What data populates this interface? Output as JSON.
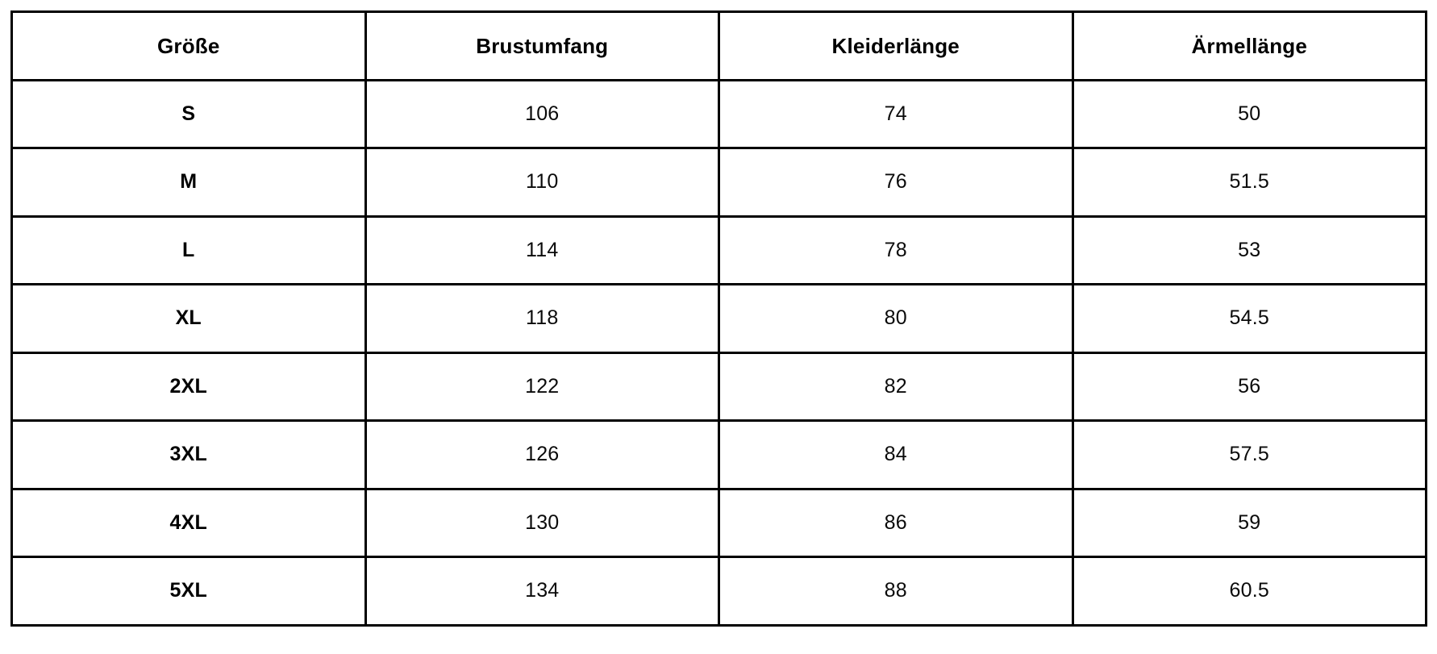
{
  "table": {
    "name": "size-chart",
    "headers": [
      "Größe",
      "Brustumfang",
      "Kleiderlänge",
      "Ärmellänge"
    ],
    "rows": [
      {
        "size": "S",
        "values": [
          "106",
          "74",
          "50"
        ]
      },
      {
        "size": "M",
        "values": [
          "110",
          "76",
          "51.5"
        ]
      },
      {
        "size": "L",
        "values": [
          "114",
          "78",
          "53"
        ]
      },
      {
        "size": "XL",
        "values": [
          "118",
          "80",
          "54.5"
        ]
      },
      {
        "size": "2XL",
        "values": [
          "122",
          "82",
          "56"
        ]
      },
      {
        "size": "3XL",
        "values": [
          "126",
          "84",
          "57.5"
        ]
      },
      {
        "size": "4XL",
        "values": [
          "130",
          "86",
          "59"
        ]
      },
      {
        "size": "5XL",
        "values": [
          "134",
          "88",
          "60.5"
        ]
      }
    ],
    "colors": {
      "border": "#000000",
      "text": "#000000",
      "background": "#ffffff"
    }
  }
}
